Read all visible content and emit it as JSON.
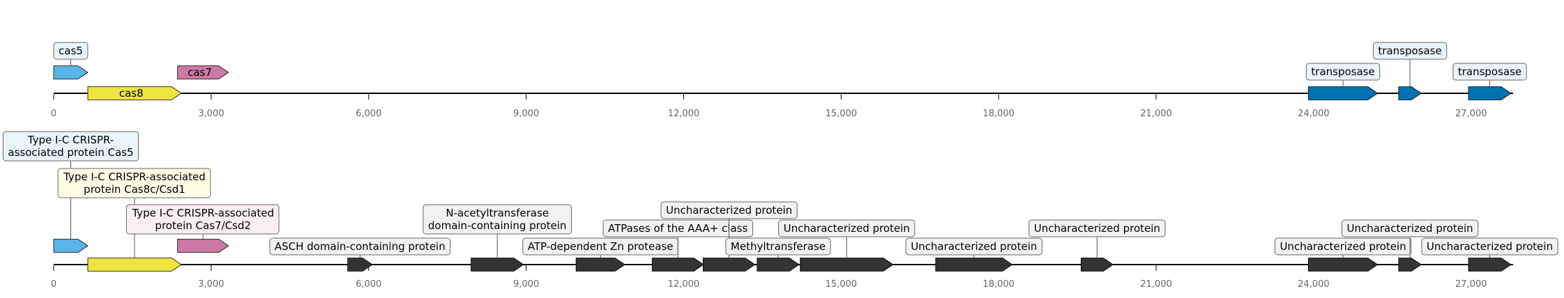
{
  "tracks": [
    {
      "genes": [
        {
          "start": 0,
          "end": 650,
          "strand": "+",
          "color": "#5ab4e8",
          "label": "cas5",
          "label_style": "box-above",
          "box_fill": "#e9f4fb"
        },
        {
          "start": 650,
          "end": 2430,
          "strand": "+",
          "color": "#f0e442",
          "label": "cas8",
          "label_style": "inside"
        },
        {
          "start": 2360,
          "end": 3330,
          "strand": "+",
          "color": "#cc79a7",
          "label": "cas7",
          "label_style": "inside"
        },
        {
          "start": 23900,
          "end": 25220,
          "strand": "+",
          "color": "#0072b2",
          "label": "transposase",
          "label_style": "box-above",
          "box_fill": "#e9f4fb"
        },
        {
          "start": 25620,
          "end": 26050,
          "strand": "+",
          "color": "#0072b2",
          "label": "transposase",
          "label_style": "box-above",
          "box_fill": "#e9f4fb"
        },
        {
          "start": 26950,
          "end": 27760,
          "strand": "+",
          "color": "#0072b2",
          "label": "transposase",
          "label_style": "box-above",
          "box_fill": "#e9f4fb"
        }
      ]
    },
    {
      "genes": [
        {
          "start": 0,
          "end": 650,
          "strand": "+",
          "color": "#5ab4e8",
          "label": "Type I-C CRISPR-\nassociated protein Cas5",
          "label_style": "box-above",
          "box_fill": "#e9f4fb"
        },
        {
          "start": 650,
          "end": 2430,
          "strand": "+",
          "color": "#f0e442",
          "label": "Type I-C CRISPR-associated\nprotein Cas8c/Csd1",
          "label_style": "box-above",
          "box_fill": "#fdfde6"
        },
        {
          "start": 2360,
          "end": 3330,
          "strand": "+",
          "color": "#cc79a7",
          "label": "Type I-C CRISPR-associated\nprotein Cas7/Csd2",
          "label_style": "box-above",
          "box_fill": "#f9eef4"
        },
        {
          "start": 5600,
          "end": 6070,
          "strand": "+",
          "color": "#333333",
          "label": "ASCH domain-containing protein",
          "label_style": "box-above",
          "box_fill": "#f2f2f2"
        },
        {
          "start": 7950,
          "end": 8950,
          "strand": "+",
          "color": "#333333",
          "label": "N-acetyltransferase\ndomain-containing protein",
          "label_style": "box-above",
          "box_fill": "#f2f2f2"
        },
        {
          "start": 9950,
          "end": 10880,
          "strand": "+",
          "color": "#333333",
          "label": "ATP-dependent Zn protease",
          "label_style": "box-above",
          "box_fill": "#f2f2f2"
        },
        {
          "start": 11400,
          "end": 12380,
          "strand": "+",
          "color": "#333333",
          "label": "ATPases of the AAA+ class",
          "label_style": "box-above",
          "box_fill": "#f2f2f2"
        },
        {
          "start": 12370,
          "end": 13360,
          "strand": "+",
          "color": "#333333",
          "label": "Uncharacterized protein",
          "label_style": "box-above",
          "box_fill": "#f2f2f2"
        },
        {
          "start": 13400,
          "end": 14200,
          "strand": "+",
          "color": "#333333",
          "label": "Methyltransferase",
          "label_style": "box-above",
          "box_fill": "#f2f2f2"
        },
        {
          "start": 14220,
          "end": 15990,
          "strand": "+",
          "color": "#333333",
          "label": "Uncharacterized protein",
          "label_style": "box-above",
          "box_fill": "#f2f2f2"
        },
        {
          "start": 16800,
          "end": 18260,
          "strand": "+",
          "color": "#333333",
          "label": "Uncharacterized protein",
          "label_style": "box-above",
          "box_fill": "#f2f2f2"
        },
        {
          "start": 19570,
          "end": 20180,
          "strand": "+",
          "color": "#333333",
          "label": "Uncharacterized protein",
          "label_style": "box-above",
          "box_fill": "#f2f2f2"
        },
        {
          "start": 23900,
          "end": 25220,
          "strand": "+",
          "color": "#333333",
          "label": "Uncharacterized protein",
          "label_style": "box-above",
          "box_fill": "#f2f2f2"
        },
        {
          "start": 25620,
          "end": 26050,
          "strand": "+",
          "color": "#333333",
          "label": "Uncharacterized protein",
          "label_style": "box-above",
          "box_fill": "#f2f2f2"
        },
        {
          "start": 26950,
          "end": 27760,
          "strand": "+",
          "color": "#333333",
          "label": "Uncharacterized protein",
          "label_style": "box-above",
          "box_fill": "#f2f2f2"
        }
      ]
    }
  ],
  "axis": {
    "min": 0,
    "max": 27800,
    "ticks": [
      0,
      3000,
      6000,
      9000,
      12000,
      15000,
      18000,
      21000,
      24000,
      27000
    ],
    "tick_labels": [
      "0",
      "3,000",
      "6,000",
      "9,000",
      "12,000",
      "15,000",
      "18,000",
      "21,000",
      "24,000",
      "27,000"
    ]
  }
}
